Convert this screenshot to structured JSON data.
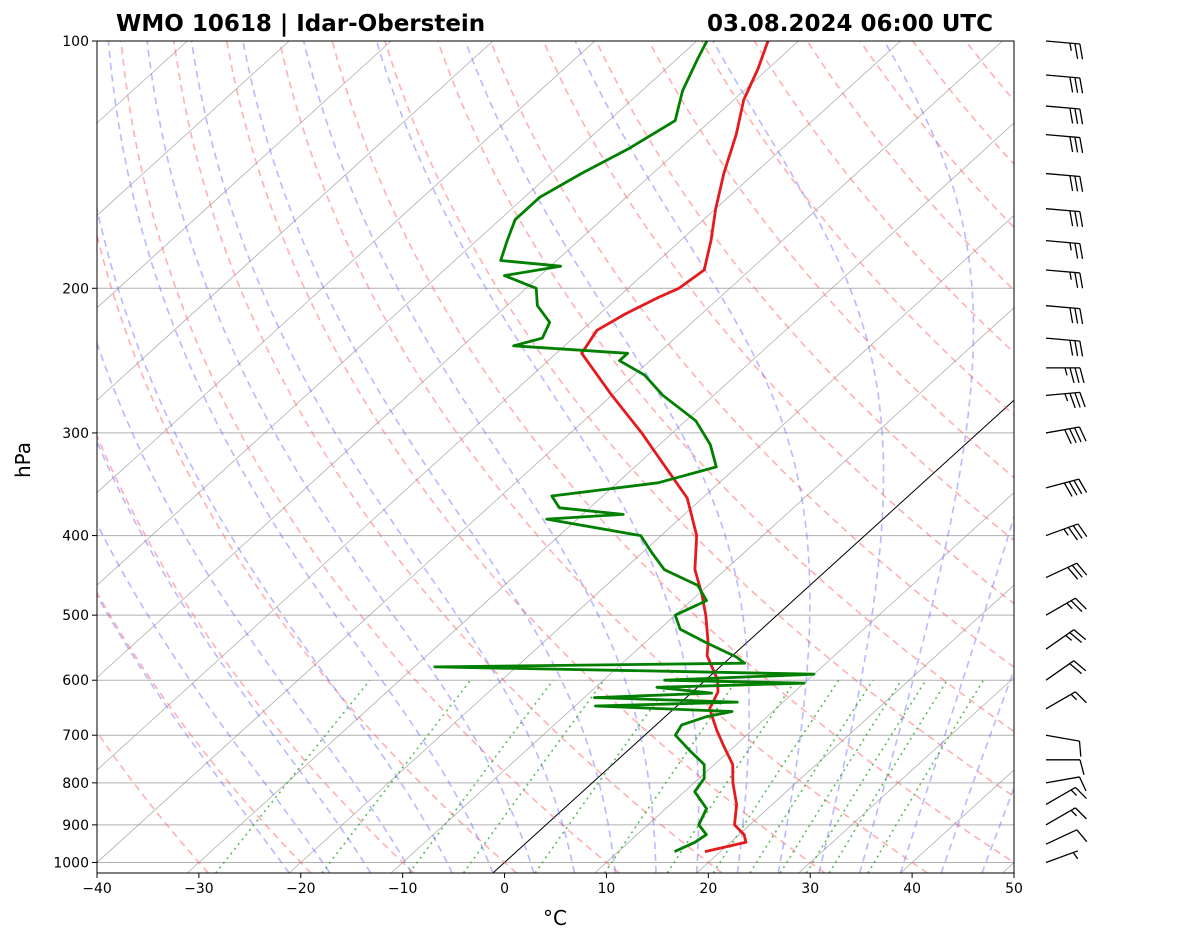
{
  "header": {
    "station": "WMO 10618 | Idar-Oberstein",
    "datetime": "03.08.2024 06:00 UTC"
  },
  "chart_data": {
    "type": "skew-t",
    "xlabel": "°C",
    "ylabel": "hPa",
    "xlim": [
      -40,
      50
    ],
    "ylim": [
      1030,
      100
    ],
    "y_scale": "log",
    "grid": true,
    "x_ticks": [
      -40,
      -30,
      -20,
      -10,
      0,
      10,
      20,
      30,
      40,
      50
    ],
    "x_tick_labels": [
      "−40",
      "−30",
      "−20",
      "−10",
      "0",
      "10",
      "20",
      "30",
      "40",
      "50"
    ],
    "y_ticks": [
      1000,
      900,
      800,
      700,
      600,
      500,
      400,
      300,
      200,
      100
    ],
    "y_tick_labels": [
      "1000",
      "900",
      "800",
      "700",
      "600",
      "500",
      "400",
      "300",
      "200",
      "100"
    ],
    "colors": {
      "temperature": "#e41a1c",
      "dewpoint": "#007f00",
      "dry_adiabats": "#ff6464",
      "moist_adiabats": "#6464ff",
      "mixing_ratio": "#33aa33",
      "isotherms": "#888888",
      "zero_isotherm": "#000000",
      "wind_barbs": "#000000"
    },
    "series": [
      {
        "type": "line",
        "color": "#e41a1c",
        "points": [
          {
            "p": 970,
            "t": 18.5
          },
          {
            "p": 945,
            "t": 21.5
          },
          {
            "p": 925,
            "t": 20.5
          },
          {
            "p": 900,
            "t": 18.5
          },
          {
            "p": 850,
            "t": 16.5
          },
          {
            "p": 800,
            "t": 13.8
          },
          {
            "p": 760,
            "t": 11.8
          },
          {
            "p": 720,
            "t": 8.8
          },
          {
            "p": 690,
            "t": 6.5
          },
          {
            "p": 650,
            "t": 3.5
          },
          {
            "p": 620,
            "t": 2.5
          },
          {
            "p": 600,
            "t": 1.2
          },
          {
            "p": 560,
            "t": -2.5
          },
          {
            "p": 540,
            "t": -3.8
          },
          {
            "p": 500,
            "t": -7.0
          },
          {
            "p": 470,
            "t": -9.8
          },
          {
            "p": 440,
            "t": -13.0
          },
          {
            "p": 400,
            "t": -16.5
          },
          {
            "p": 360,
            "t": -21.5
          },
          {
            "p": 330,
            "t": -27.0
          },
          {
            "p": 300,
            "t": -33.0
          },
          {
            "p": 270,
            "t": -40.0
          },
          {
            "p": 240,
            "t": -47.5
          },
          {
            "p": 225,
            "t": -48.5
          },
          {
            "p": 215,
            "t": -47.5
          },
          {
            "p": 205,
            "t": -46.0
          },
          {
            "p": 200,
            "t": -45.0
          },
          {
            "p": 190,
            "t": -44.5
          },
          {
            "p": 175,
            "t": -47.0
          },
          {
            "p": 160,
            "t": -50.0
          },
          {
            "p": 145,
            "t": -53.0
          },
          {
            "p": 130,
            "t": -56.0
          },
          {
            "p": 118,
            "t": -59.0
          },
          {
            "p": 108,
            "t": -61.0
          },
          {
            "p": 100,
            "t": -63.0
          }
        ]
      },
      {
        "type": "line",
        "color": "#007f00",
        "points": [
          {
            "p": 970,
            "t": 15.5
          },
          {
            "p": 945,
            "t": 16.5
          },
          {
            "p": 925,
            "t": 16.8
          },
          {
            "p": 900,
            "t": 15.0
          },
          {
            "p": 860,
            "t": 14.0
          },
          {
            "p": 820,
            "t": 11.0
          },
          {
            "p": 790,
            "t": 10.5
          },
          {
            "p": 760,
            "t": 9.0
          },
          {
            "p": 730,
            "t": 6.0
          },
          {
            "p": 700,
            "t": 3.0
          },
          {
            "p": 680,
            "t": 2.5
          },
          {
            "p": 665,
            "t": 4.0
          },
          {
            "p": 655,
            "t": 6.0
          },
          {
            "p": 645,
            "t": -8.0
          },
          {
            "p": 638,
            "t": 5.5
          },
          {
            "p": 630,
            "t": -9.0
          },
          {
            "p": 622,
            "t": 2.0
          },
          {
            "p": 612,
            "t": -4.0
          },
          {
            "p": 605,
            "t": 10.0
          },
          {
            "p": 600,
            "t": -4.0
          },
          {
            "p": 590,
            "t": 10.0
          },
          {
            "p": 585,
            "t": -5.0
          },
          {
            "p": 578,
            "t": -28.0
          },
          {
            "p": 572,
            "t": 2.0
          },
          {
            "p": 562,
            "t": 0.5
          },
          {
            "p": 540,
            "t": -4.0
          },
          {
            "p": 520,
            "t": -8.0
          },
          {
            "p": 500,
            "t": -10.0
          },
          {
            "p": 480,
            "t": -8.5
          },
          {
            "p": 460,
            "t": -11.0
          },
          {
            "p": 440,
            "t": -16.0
          },
          {
            "p": 420,
            "t": -19.0
          },
          {
            "p": 400,
            "t": -22.0
          },
          {
            "p": 382,
            "t": -33.0
          },
          {
            "p": 377,
            "t": -26.0
          },
          {
            "p": 370,
            "t": -33.0
          },
          {
            "p": 358,
            "t": -35.0
          },
          {
            "p": 345,
            "t": -26.0
          },
          {
            "p": 330,
            "t": -22.0
          },
          {
            "p": 310,
            "t": -25.0
          },
          {
            "p": 290,
            "t": -29.0
          },
          {
            "p": 270,
            "t": -35.0
          },
          {
            "p": 255,
            "t": -39.0
          },
          {
            "p": 245,
            "t": -43.0
          },
          {
            "p": 240,
            "t": -43.0
          },
          {
            "p": 235,
            "t": -55.0
          },
          {
            "p": 230,
            "t": -53.0
          },
          {
            "p": 220,
            "t": -54.0
          },
          {
            "p": 210,
            "t": -57.0
          },
          {
            "p": 200,
            "t": -59.0
          },
          {
            "p": 193,
            "t": -63.5
          },
          {
            "p": 188,
            "t": -59.0
          },
          {
            "p": 185,
            "t": -65.5
          },
          {
            "p": 175,
            "t": -67.0
          },
          {
            "p": 165,
            "t": -68.5
          },
          {
            "p": 155,
            "t": -68.5
          },
          {
            "p": 145,
            "t": -67.0
          },
          {
            "p": 135,
            "t": -65.0
          },
          {
            "p": 125,
            "t": -63.5
          },
          {
            "p": 115,
            "t": -66.0
          },
          {
            "p": 105,
            "t": -68.0
          },
          {
            "p": 100,
            "t": -69.0
          }
        ]
      }
    ],
    "wind_barbs": [
      {
        "p": 1000,
        "speed_kt": 5,
        "dir_deg": 250
      },
      {
        "p": 950,
        "speed_kt": 10,
        "dir_deg": 245
      },
      {
        "p": 900,
        "speed_kt": 15,
        "dir_deg": 240
      },
      {
        "p": 850,
        "speed_kt": 15,
        "dir_deg": 240
      },
      {
        "p": 800,
        "speed_kt": 10,
        "dir_deg": 260
      },
      {
        "p": 750,
        "speed_kt": 10,
        "dir_deg": 270
      },
      {
        "p": 700,
        "speed_kt": 10,
        "dir_deg": 280
      },
      {
        "p": 650,
        "speed_kt": 15,
        "dir_deg": 240
      },
      {
        "p": 600,
        "speed_kt": 20,
        "dir_deg": 235
      },
      {
        "p": 550,
        "speed_kt": 25,
        "dir_deg": 235
      },
      {
        "p": 500,
        "speed_kt": 25,
        "dir_deg": 240
      },
      {
        "p": 450,
        "speed_kt": 30,
        "dir_deg": 245
      },
      {
        "p": 400,
        "speed_kt": 35,
        "dir_deg": 250
      },
      {
        "p": 350,
        "speed_kt": 40,
        "dir_deg": 255
      },
      {
        "p": 300,
        "speed_kt": 40,
        "dir_deg": 260
      },
      {
        "p": 270,
        "speed_kt": 35,
        "dir_deg": 265
      },
      {
        "p": 250,
        "speed_kt": 35,
        "dir_deg": 270
      },
      {
        "p": 230,
        "speed_kt": 30,
        "dir_deg": 275
      },
      {
        "p": 210,
        "speed_kt": 30,
        "dir_deg": 275
      },
      {
        "p": 190,
        "speed_kt": 25,
        "dir_deg": 275
      },
      {
        "p": 175,
        "speed_kt": 25,
        "dir_deg": 275
      },
      {
        "p": 160,
        "speed_kt": 30,
        "dir_deg": 275
      },
      {
        "p": 145,
        "speed_kt": 30,
        "dir_deg": 275
      },
      {
        "p": 130,
        "speed_kt": 30,
        "dir_deg": 275
      },
      {
        "p": 120,
        "speed_kt": 30,
        "dir_deg": 275
      },
      {
        "p": 110,
        "speed_kt": 30,
        "dir_deg": 275
      },
      {
        "p": 100,
        "speed_kt": 25,
        "dir_deg": 275
      }
    ]
  }
}
